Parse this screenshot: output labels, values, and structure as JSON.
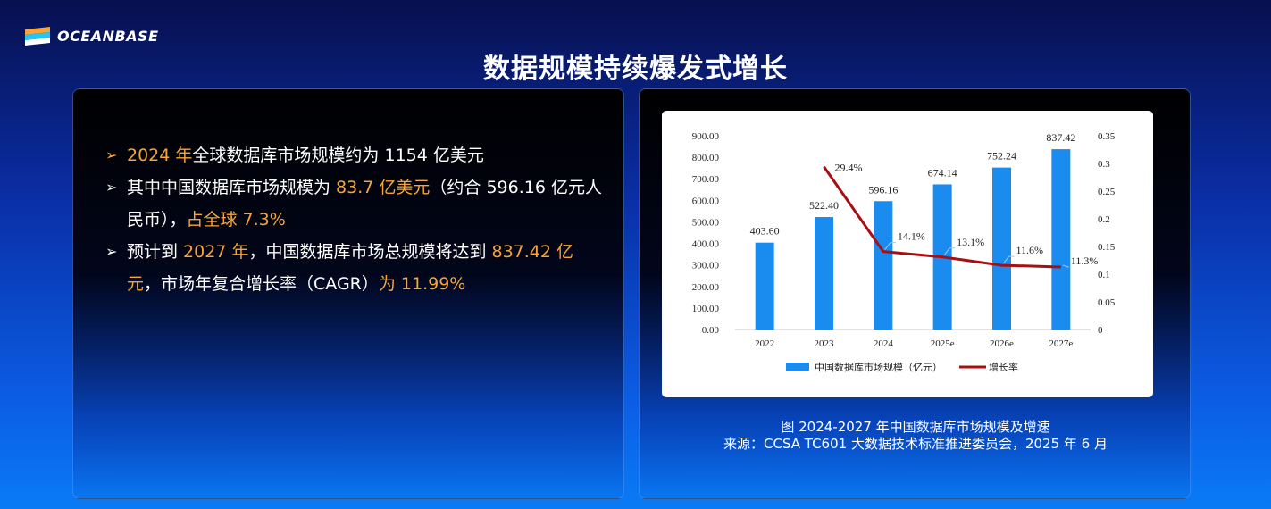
{
  "brand": {
    "name": "OCEANBASE",
    "logo_icon": "oceanbase-logo-icon"
  },
  "title": "数据规模持续爆发式增长",
  "bullets": [
    {
      "parts": [
        {
          "text": "2024 年",
          "hl": true
        },
        {
          "text": "全球数据库市场规模约为 1154 亿美元",
          "hl": false
        }
      ]
    },
    {
      "parts": [
        {
          "text": "其中中国数据库市场规模为 ",
          "hl": false
        },
        {
          "text": "83.7 亿美元",
          "hl": true
        },
        {
          "text": "（约合 596.16 亿元人民币），",
          "hl": false
        },
        {
          "text": "占全球 7.3%",
          "hl": true
        }
      ]
    },
    {
      "parts": [
        {
          "text": "预计到 ",
          "hl": false
        },
        {
          "text": "2027 年",
          "hl": true
        },
        {
          "text": "，中国数据库市场总规模将达到 ",
          "hl": false
        },
        {
          "text": "837.42 亿元",
          "hl": true
        },
        {
          "text": "，市场年复合增长率（CAGR）",
          "hl": false
        },
        {
          "text": "为 11.99%",
          "hl": true
        }
      ]
    }
  ],
  "caption": {
    "line1": "图 2024-2027 年中国数据库市场规模及增速",
    "line2": "来源：CCSA TC601 大数据技术标准推进委员会，2025 年 6 月"
  },
  "colors": {
    "bar": "#1a8cf0",
    "line": "#a80f12",
    "highlight": "#f7a43a"
  },
  "chart_data": {
    "type": "bar",
    "categories": [
      "2022",
      "2023",
      "2024",
      "2025e",
      "2026e",
      "2027e"
    ],
    "series": [
      {
        "name": "中国数据库市场规模（亿元）",
        "type": "bar",
        "axis": "left",
        "values": [
          403.6,
          522.4,
          596.16,
          674.14,
          752.24,
          837.42
        ],
        "labels": [
          "403.60",
          "522.40",
          "596.16",
          "674.14",
          "752.24",
          "837.42"
        ]
      },
      {
        "name": "增长率",
        "type": "line",
        "axis": "right",
        "values": [
          null,
          0.294,
          0.141,
          0.131,
          0.116,
          0.113
        ],
        "labels": [
          "",
          "29.4%",
          "14.1%",
          "13.1%",
          "11.6%",
          "11.3%"
        ]
      }
    ],
    "ylim_left": [
      0,
      900
    ],
    "yticks_left": [
      "0.00",
      "100.00",
      "200.00",
      "300.00",
      "400.00",
      "500.00",
      "600.00",
      "700.00",
      "800.00",
      "900.00"
    ],
    "ylim_right": [
      0,
      0.35
    ],
    "yticks_right": [
      "0",
      "0.05",
      "0.1",
      "0.15",
      "0.2",
      "0.25",
      "0.3",
      "0.35"
    ],
    "grid": false,
    "legend": "bottom"
  }
}
